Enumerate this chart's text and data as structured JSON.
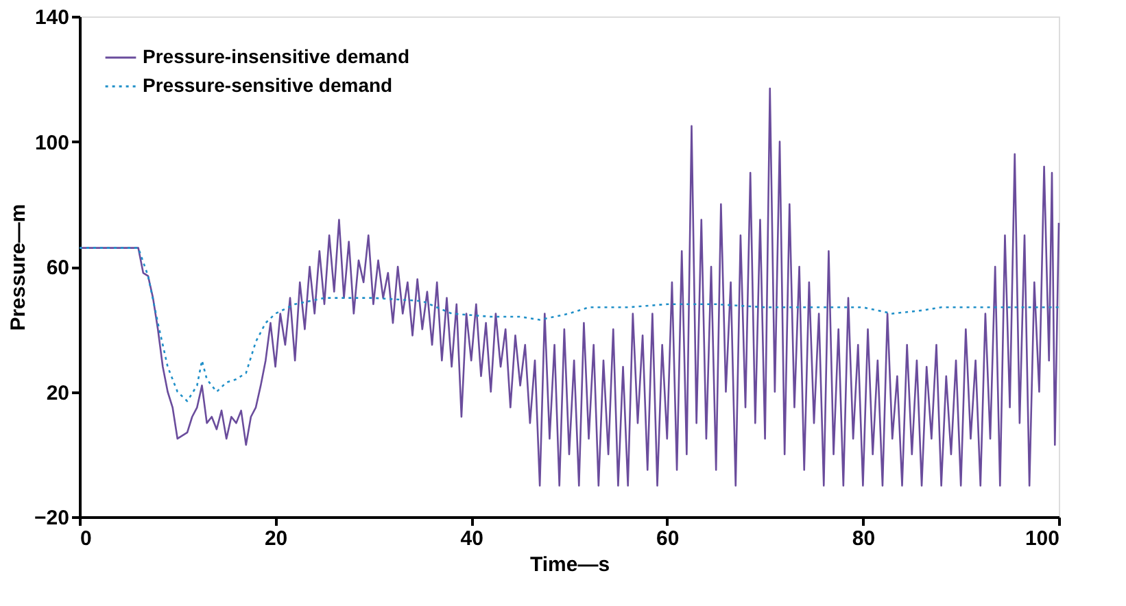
{
  "chart_data": {
    "type": "line",
    "xlabel": "Time—s",
    "ylabel": "Pressure—m",
    "xlim": [
      0,
      100
    ],
    "xticks": [
      0,
      20,
      40,
      60,
      80,
      100
    ],
    "ylim": [
      -20,
      140
    ],
    "yticks": [
      -20,
      20,
      60,
      100,
      140
    ],
    "grid": false,
    "legend": "top left",
    "marker": "none",
    "series": [
      {
        "name": "Pressure-insensitive demand",
        "color": "#6a4c9c",
        "line_style": "solid",
        "x": [
          0,
          6,
          6.5,
          7,
          7.5,
          8,
          8.5,
          9,
          9.5,
          10,
          10.5,
          11,
          11.5,
          12,
          12.5,
          13,
          13.5,
          14,
          14.5,
          15,
          15.5,
          16,
          16.5,
          17,
          17.5,
          18,
          18.5,
          19,
          19.5,
          20,
          20.5,
          21,
          21.5,
          22,
          22.5,
          23,
          23.5,
          24,
          24.5,
          25,
          25.5,
          26,
          26.5,
          27,
          27.5,
          28,
          28.5,
          29,
          29.5,
          30,
          30.5,
          31,
          31.5,
          32,
          32.5,
          33,
          33.5,
          34,
          34.5,
          35,
          35.5,
          36,
          36.5,
          37,
          37.5,
          38,
          38.5,
          39,
          39.5,
          40,
          40.5,
          41,
          41.5,
          42,
          42.5,
          43,
          43.5,
          44,
          44.5,
          45,
          45.5,
          46,
          46.5,
          47,
          47.5,
          48,
          48.5,
          49,
          49.5,
          50,
          50.5,
          51,
          51.5,
          52,
          52.5,
          53,
          53.5,
          54,
          54.5,
          55,
          55.5,
          56,
          56.5,
          57,
          57.5,
          58,
          58.5,
          59,
          59.5,
          60,
          60.5,
          61,
          61.5,
          62,
          62.5,
          63,
          63.5,
          64,
          64.5,
          65,
          65.5,
          66,
          66.5,
          67,
          67.5,
          68,
          68.5,
          69,
          69.5,
          70,
          70.5,
          71,
          71.5,
          72,
          72.5,
          73,
          73.5,
          74,
          74.5,
          75,
          75.5,
          76,
          76.5,
          77,
          77.5,
          78,
          78.5,
          79,
          79.5,
          80,
          80.5,
          81,
          81.5,
          82,
          82.5,
          83,
          83.5,
          84,
          84.5,
          85,
          85.5,
          86,
          86.5,
          87,
          87.5,
          88,
          88.5,
          89,
          89.5,
          90,
          90.5,
          91,
          91.5,
          92,
          92.5,
          93,
          93.5,
          94,
          94.5,
          95,
          95.5,
          96,
          96.5,
          97,
          97.5,
          98,
          98.5,
          99,
          99.3,
          99.6,
          100
        ],
        "values": [
          66,
          66,
          58,
          57,
          50,
          40,
          28,
          20,
          15,
          5,
          6,
          7,
          12,
          15,
          22,
          10,
          12,
          8,
          14,
          5,
          12,
          10,
          14,
          3,
          12,
          15,
          22,
          30,
          42,
          28,
          45,
          35,
          50,
          30,
          55,
          40,
          60,
          45,
          65,
          48,
          70,
          52,
          75,
          50,
          68,
          45,
          62,
          55,
          70,
          48,
          62,
          50,
          58,
          42,
          60,
          45,
          55,
          38,
          56,
          40,
          52,
          35,
          55,
          30,
          50,
          28,
          48,
          12,
          45,
          30,
          48,
          25,
          42,
          20,
          45,
          28,
          40,
          15,
          38,
          22,
          35,
          10,
          30,
          -10,
          45,
          5,
          35,
          -10,
          40,
          0,
          30,
          -10,
          42,
          5,
          35,
          -10,
          30,
          0,
          40,
          -10,
          28,
          -10,
          45,
          10,
          38,
          -5,
          45,
          -10,
          35,
          5,
          55,
          -5,
          65,
          0,
          105,
          10,
          75,
          5,
          60,
          -5,
          80,
          20,
          55,
          -10,
          70,
          15,
          90,
          10,
          75,
          5,
          117,
          20,
          100,
          0,
          80,
          15,
          60,
          -5,
          55,
          10,
          45,
          -10,
          65,
          0,
          40,
          -10,
          50,
          5,
          35,
          -10,
          40,
          0,
          30,
          -10,
          45,
          5,
          25,
          -10,
          35,
          0,
          30,
          -10,
          28,
          5,
          35,
          -10,
          25,
          0,
          30,
          -10,
          40,
          5,
          30,
          -10,
          45,
          5,
          60,
          -10,
          70,
          15,
          96,
          10,
          70,
          -10,
          55,
          20,
          92,
          30,
          90,
          3,
          74
        ]
      },
      {
        "name": "Pressure-sensitive demand",
        "color": "#1f8fc8",
        "line_style": "dotted",
        "x": [
          0,
          6,
          7,
          8,
          9,
          10,
          11,
          12,
          12.5,
          13,
          14,
          15,
          16,
          17,
          18,
          19,
          20,
          22,
          25,
          30,
          35,
          38,
          42,
          45,
          47,
          50,
          52,
          56,
          60,
          65,
          70,
          75,
          80,
          83,
          86,
          88,
          92,
          96,
          100
        ],
        "values": [
          66,
          66,
          57,
          42,
          28,
          20,
          17,
          22,
          30,
          24,
          20,
          23,
          24,
          26,
          36,
          42,
          45,
          48,
          50,
          50,
          49,
          45,
          44,
          44,
          43,
          45,
          47,
          47,
          48,
          48,
          47,
          47,
          47,
          45,
          46,
          47,
          47,
          47,
          47
        ]
      }
    ]
  }
}
